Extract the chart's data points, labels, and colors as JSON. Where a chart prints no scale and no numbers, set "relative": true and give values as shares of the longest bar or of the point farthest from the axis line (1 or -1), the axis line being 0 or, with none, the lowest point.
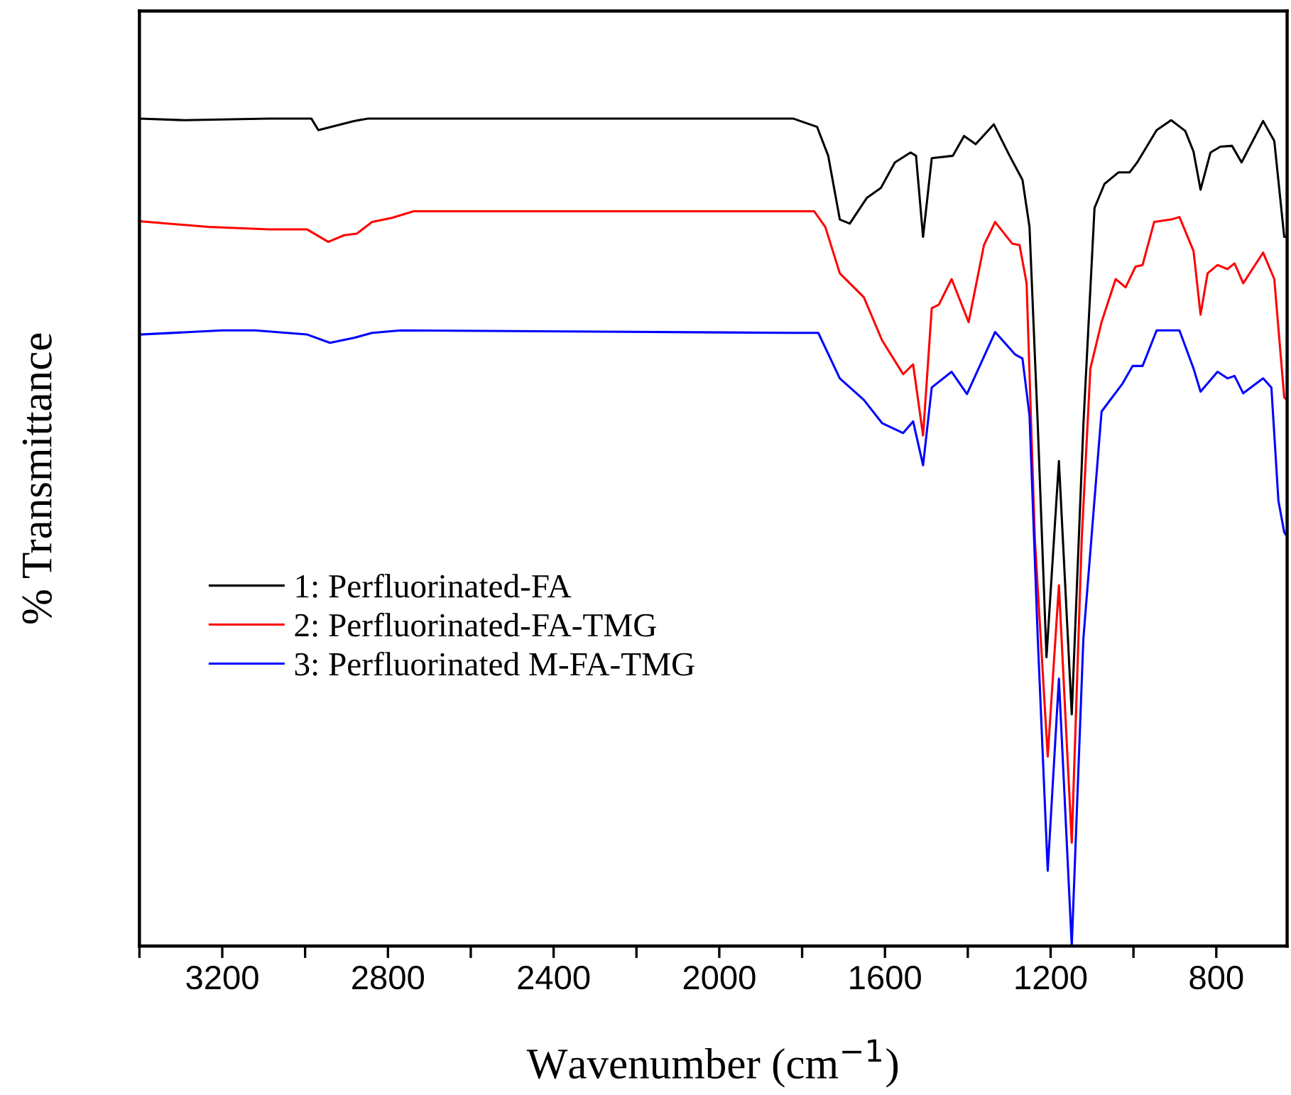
{
  "chart_data": {
    "type": "line",
    "relative": true,
    "xlabel": "Wavenumber (cm$^{−1}$)",
    "ylabel": "% Transmittance",
    "xlim": [
      3400,
      629
    ],
    "xticks": [
      {
        "value": 3400,
        "label": null
      },
      3200,
      {
        "value": 3000,
        "label": null
      },
      2800,
      {
        "value": 2600,
        "label": null
      },
      2400,
      {
        "value": 2200,
        "label": null
      },
      2000,
      {
        "value": 1800,
        "label": null
      },
      1600,
      {
        "value": 1400,
        "label": null
      },
      1200,
      {
        "value": 1000,
        "label": null
      },
      800
    ],
    "grid": false,
    "legend": "left",
    "marker": "none",
    "line_style": "solid",
    "tick_labels": "x",
    "series": [
      {
        "name": "1: Perfluorinated-FA",
        "color": "#000000",
        "x": [
          3400,
          3292,
          3087,
          2985,
          2968,
          2882,
          2848,
          2711,
          2369,
          2027,
          1822,
          1764,
          1737,
          1709,
          1685,
          1644,
          1610,
          1576,
          1538,
          1525,
          1508,
          1487,
          1436,
          1409,
          1381,
          1337,
          1299,
          1268,
          1251,
          1231,
          1210,
          1180,
          1149,
          1121,
          1094,
          1070,
          1036,
          1009,
          991,
          944,
          909,
          875,
          855,
          838,
          814,
          790,
          762,
          739,
          687,
          660,
          636,
          629
        ],
        "values": [
          1.0,
          0.998,
          1.0,
          1.0,
          0.986,
          0.997,
          1.0,
          1.0,
          1.0,
          1.0,
          1.0,
          0.99,
          0.955,
          0.878,
          0.873,
          0.904,
          0.916,
          0.947,
          0.959,
          0.955,
          0.857,
          0.952,
          0.955,
          0.979,
          0.969,
          0.993,
          0.955,
          0.926,
          0.869,
          0.629,
          0.349,
          0.586,
          0.28,
          0.629,
          0.892,
          0.921,
          0.935,
          0.935,
          0.947,
          0.986,
          0.998,
          0.985,
          0.96,
          0.914,
          0.959,
          0.966,
          0.967,
          0.947,
          0.997,
          0.973,
          0.857,
          0.857
        ]
      },
      {
        "name": "2: Perfluorinated-FA-TMG",
        "color": "#ff0000",
        "x": [
          3400,
          3234,
          3087,
          2995,
          2944,
          2906,
          2875,
          2838,
          2790,
          2738,
          1822,
          1771,
          1744,
          1709,
          1651,
          1607,
          1556,
          1532,
          1508,
          1487,
          1470,
          1439,
          1398,
          1361,
          1334,
          1293,
          1275,
          1258,
          1238,
          1207,
          1180,
          1149,
          1125,
          1104,
          1077,
          1043,
          1019,
          995,
          978,
          950,
          909,
          889,
          855,
          838,
          821,
          797,
          773,
          756,
          735,
          687,
          660,
          636,
          629
        ],
        "values": [
          0.876,
          0.869,
          0.866,
          0.866,
          0.851,
          0.859,
          0.861,
          0.875,
          0.88,
          0.888,
          0.888,
          0.888,
          0.869,
          0.813,
          0.784,
          0.732,
          0.691,
          0.703,
          0.617,
          0.771,
          0.775,
          0.806,
          0.754,
          0.847,
          0.875,
          0.849,
          0.847,
          0.801,
          0.491,
          0.229,
          0.436,
          0.125,
          0.491,
          0.698,
          0.754,
          0.806,
          0.796,
          0.821,
          0.823,
          0.875,
          0.878,
          0.881,
          0.84,
          0.763,
          0.813,
          0.823,
          0.818,
          0.825,
          0.801,
          0.838,
          0.806,
          0.663,
          0.66
        ]
      },
      {
        "name": "3: Perfluorinated M-FA-TMG",
        "color": "#0000ff",
        "x": [
          3400,
          3200,
          3121,
          2995,
          2940,
          2882,
          2838,
          2769,
          1822,
          1761,
          1709,
          1651,
          1607,
          1556,
          1532,
          1508,
          1487,
          1439,
          1402,
          1334,
          1286,
          1268,
          1251,
          1231,
          1207,
          1180,
          1149,
          1121,
          1077,
          1026,
          1002,
          978,
          944,
          889,
          855,
          838,
          797,
          773,
          756,
          735,
          687,
          667,
          650,
          636,
          629
        ],
        "values": [
          0.739,
          0.744,
          0.744,
          0.739,
          0.729,
          0.735,
          0.741,
          0.744,
          0.741,
          0.741,
          0.686,
          0.66,
          0.632,
          0.62,
          0.634,
          0.581,
          0.675,
          0.694,
          0.667,
          0.742,
          0.715,
          0.71,
          0.641,
          0.371,
          0.091,
          0.323,
          0.0,
          0.371,
          0.646,
          0.68,
          0.701,
          0.701,
          0.744,
          0.744,
          0.698,
          0.67,
          0.694,
          0.686,
          0.689,
          0.668,
          0.686,
          0.675,
          0.538,
          0.5,
          0.495
        ]
      }
    ]
  }
}
